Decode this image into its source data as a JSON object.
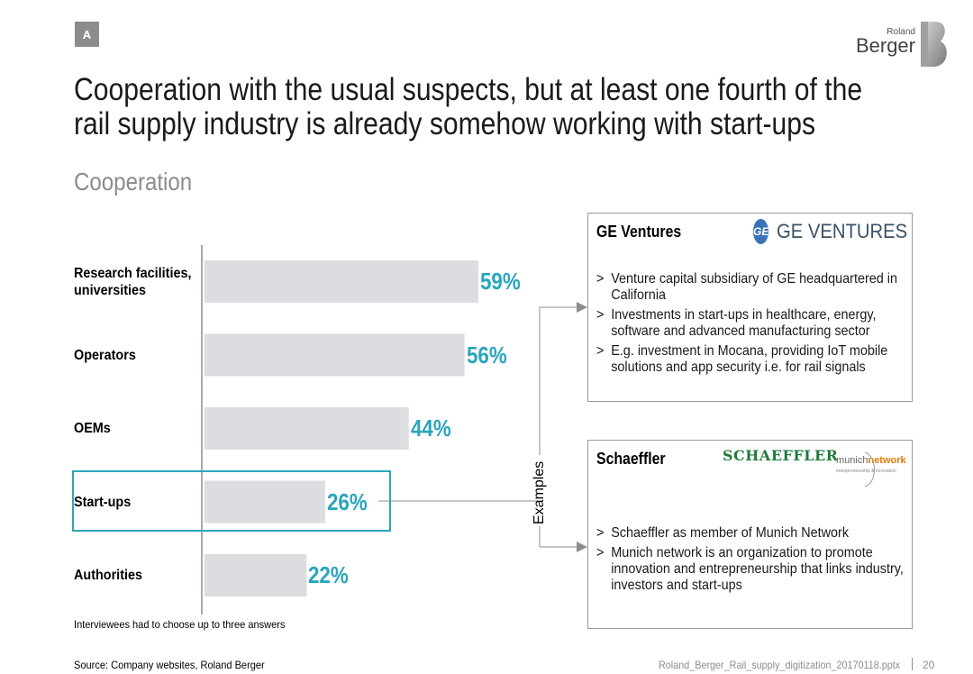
{
  "header": {
    "badge": "A",
    "title_line1": "Cooperation with the usual suspects, but at least one fourth of the",
    "title_line2": "rail supply industry is already somehow working with start-ups",
    "subtitle": "Cooperation"
  },
  "logo": {
    "small": "Roland",
    "big": "Berger"
  },
  "chart_data": {
    "type": "bar",
    "orientation": "horizontal",
    "categories": [
      "Research facilities, universities",
      "Operators",
      "OEMs",
      "Start-ups",
      "Authorities"
    ],
    "category_lines": [
      [
        "Research facilities,",
        "universities"
      ],
      [
        "Operators"
      ],
      [
        "OEMs"
      ],
      [
        "Start-ups"
      ],
      [
        "Authorities"
      ]
    ],
    "values": [
      59,
      56,
      44,
      26,
      22
    ],
    "value_labels": [
      "59%",
      "56%",
      "44%",
      "26%",
      "22%"
    ],
    "unit": "%",
    "highlighted": "Start-ups",
    "bar_color": "#dcdde0",
    "label_color": "#2aa5bd",
    "xlim": [
      0,
      70
    ],
    "grid": false,
    "legend": "none"
  },
  "footnote": "Interviewees had to choose up to three answers",
  "examples_label": "Examples",
  "cards": [
    {
      "title": "GE Ventures",
      "logo_text": "GE VENTURES",
      "logo_mark": "GE",
      "bullets": [
        "Venture capital subsidiary of GE headquartered in California",
        "Investments in start-ups in healthcare, energy, software and advanced manufacturing sector",
        "E.g. investment in Mocana, providing IoT mobile solutions and app security i.e. for rail signals"
      ]
    },
    {
      "title": "Schaeffler",
      "logo_text": "SCHAEFFLER",
      "logo2_a": "munich",
      "logo2_b": "network",
      "logo2_sub": "entrepreneurship & innovation",
      "bullets": [
        "Schaeffler as member of Munich Network",
        "Munich network is an organization to promote innovation and entrepreneurship that links industry, investors and start-ups"
      ]
    }
  ],
  "bullet_marker": ">",
  "footer": {
    "source": "Source: Company websites, Roland Berger",
    "filename": "Roland_Berger_Rail_supply_digitization_20170118.pptx",
    "page": "20"
  },
  "colors": {
    "accent": "#2aa5bd",
    "connector": "#8c8c8c",
    "card_border": "#9a9a9a"
  }
}
